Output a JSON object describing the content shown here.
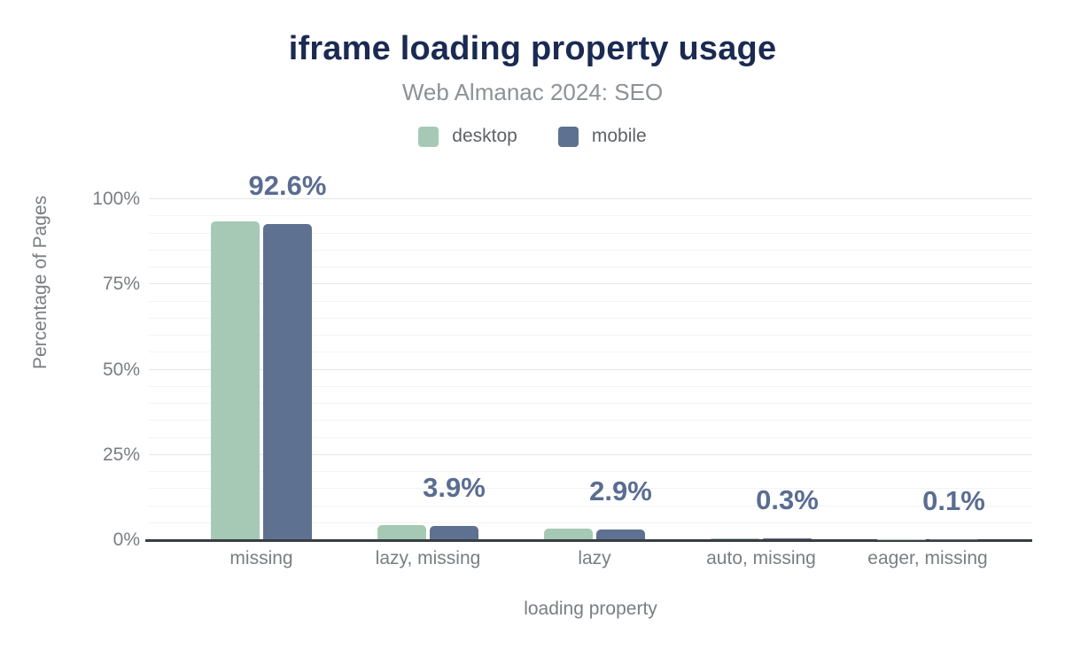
{
  "header": {
    "title": "iframe loading property usage",
    "subtitle": "Web Almanac 2024: SEO"
  },
  "legend": {
    "items": [
      {
        "label": "desktop",
        "color": "#a6c9b5"
      },
      {
        "label": "mobile",
        "color": "#5e7190"
      }
    ]
  },
  "chart_data": {
    "type": "bar",
    "title": "iframe loading property usage",
    "subtitle": "Web Almanac 2024: SEO",
    "categories": [
      "missing",
      "lazy, missing",
      "lazy",
      "auto, missing",
      "eager, missing"
    ],
    "series": [
      {
        "name": "desktop",
        "color": "#a6c9b5",
        "values": [
          93.3,
          4.1,
          3.1,
          0.3,
          0.1
        ]
      },
      {
        "name": "mobile",
        "color": "#5e7190",
        "values": [
          92.6,
          3.9,
          2.9,
          0.3,
          0.1
        ]
      }
    ],
    "bar_labels": [
      "92.6%",
      "3.9%",
      "2.9%",
      "0.3%",
      "0.1%"
    ],
    "bar_label_series": "mobile",
    "xlabel": "loading property",
    "ylabel": "Percentage of Pages",
    "ylim": [
      0,
      100
    ],
    "yticks": [
      0,
      25,
      50,
      75,
      100
    ],
    "ytick_labels": [
      "0%",
      "25%",
      "50%",
      "75%",
      "100%"
    ],
    "minor_grid_step": 5,
    "grid": "on",
    "legend_position": "top",
    "colors": {
      "title": "#1a2a52",
      "subtitle": "#8c9297",
      "axis_text": "#797e83",
      "bar_label": "#5a6d91",
      "axis_line": "#383d43",
      "major_grid": "#e3e5e8",
      "minor_grid": "#f2f3f5",
      "background": "#ffffff"
    }
  }
}
